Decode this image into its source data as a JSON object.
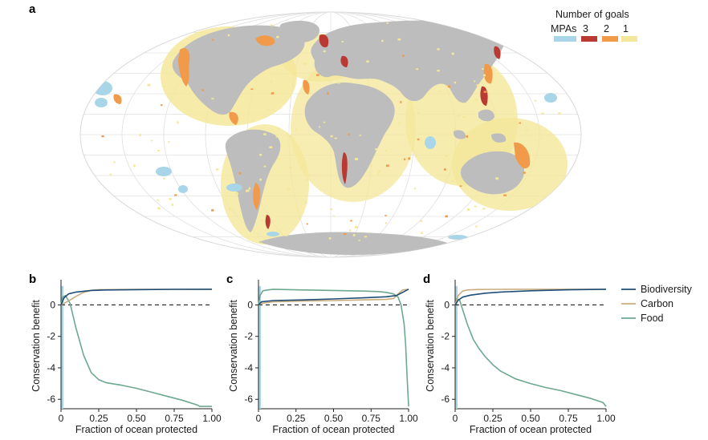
{
  "colors": {
    "biodiversity": "#1f4e79",
    "carbon": "#c9ad7d",
    "food": "#6da88f",
    "mpa": "#a8d5e8",
    "goal3": "#b93a32",
    "goal2": "#f09a4a",
    "goal1": "#f4e79a",
    "land": "#bdbdbd",
    "graticule": "#e2e2e2"
  },
  "map_panel": {
    "letter": "a",
    "legend": {
      "title": "Number of goals",
      "items": [
        {
          "label": "MPAs",
          "color": "#a8d5e8"
        },
        {
          "label": "3",
          "color": "#b93a32"
        },
        {
          "label": "2",
          "color": "#f09a4a"
        },
        {
          "label": "1",
          "color": "#f4e79a"
        }
      ]
    }
  },
  "curve_legend": [
    {
      "label": "Biodiversity",
      "color": "#1f4e79"
    },
    {
      "label": "Carbon",
      "color": "#c9ad7d"
    },
    {
      "label": "Food",
      "color": "#6da88f"
    }
  ],
  "chart_data": [
    {
      "panel": "b",
      "type": "line",
      "xlabel": "Fraction of ocean protected",
      "ylabel": "Conservation benefit",
      "xlim": [
        0,
        1
      ],
      "ylim": [
        -6.6,
        1.4
      ],
      "xticks": [
        "0",
        "0.25",
        "0.50",
        "0.75",
        "1.00"
      ],
      "yticks": [
        "-6",
        "-4",
        "-2",
        "0"
      ],
      "reference_line": {
        "y": 0,
        "style": "dashed"
      },
      "series": [
        {
          "name": "Biodiversity",
          "x": [
            0.0,
            0.02,
            0.05,
            0.1,
            0.2,
            0.3,
            0.5,
            0.75,
            1.0
          ],
          "y": [
            0.0,
            0.45,
            0.7,
            0.82,
            0.92,
            0.95,
            0.97,
            0.99,
            1.0
          ]
        },
        {
          "name": "Carbon",
          "x": [
            0.0,
            0.05,
            0.1,
            0.15,
            0.2,
            0.25,
            0.5,
            1.0
          ],
          "y": [
            0.0,
            0.25,
            0.55,
            0.8,
            0.93,
            0.97,
            0.99,
            1.0
          ]
        },
        {
          "name": "Food",
          "x": [
            0.0,
            0.01,
            0.03,
            0.06,
            0.1,
            0.15,
            0.2,
            0.25,
            0.3,
            0.4,
            0.5,
            0.6,
            0.7,
            0.8,
            0.9,
            0.92,
            1.0
          ],
          "y": [
            0.0,
            0.5,
            0.6,
            0.1,
            -1.5,
            -3.2,
            -4.3,
            -4.75,
            -4.95,
            -5.1,
            -5.3,
            -5.55,
            -5.8,
            -6.05,
            -6.35,
            -6.45,
            -6.45
          ]
        }
      ]
    },
    {
      "panel": "c",
      "type": "line",
      "xlabel": "Fraction of ocean protected",
      "ylabel": "Conservation benefit",
      "xlim": [
        0,
        1
      ],
      "ylim": [
        -6.6,
        1.4
      ],
      "xticks": [
        "0",
        "0.25",
        "0.50",
        "0.75",
        "1.00"
      ],
      "yticks": [
        "-6",
        "-4",
        "-2",
        "0"
      ],
      "reference_line": {
        "y": 0,
        "style": "dashed"
      },
      "series": [
        {
          "name": "Biodiversity",
          "x": [
            0.0,
            0.02,
            0.1,
            0.3,
            0.5,
            0.7,
            0.85,
            0.92,
            0.96,
            1.0
          ],
          "y": [
            0.0,
            0.2,
            0.28,
            0.32,
            0.38,
            0.45,
            0.52,
            0.6,
            0.8,
            1.0
          ]
        },
        {
          "name": "Carbon",
          "x": [
            0.0,
            0.02,
            0.1,
            0.3,
            0.5,
            0.7,
            0.85,
            0.9,
            0.93,
            0.96,
            1.0
          ],
          "y": [
            0.0,
            0.1,
            0.2,
            0.25,
            0.28,
            0.32,
            0.35,
            0.4,
            0.7,
            0.95,
            1.0
          ]
        },
        {
          "name": "Food",
          "x": [
            0.0,
            0.01,
            0.03,
            0.06,
            0.1,
            0.3,
            0.5,
            0.7,
            0.8,
            0.85,
            0.9,
            0.93,
            0.95,
            0.97,
            0.98,
            0.99,
            1.0
          ],
          "y": [
            0.0,
            0.6,
            0.9,
            0.95,
            1.0,
            0.95,
            0.92,
            0.88,
            0.85,
            0.8,
            0.7,
            0.5,
            0.0,
            -1.2,
            -2.5,
            -4.5,
            -6.45
          ]
        }
      ]
    },
    {
      "panel": "d",
      "type": "line",
      "xlabel": "Fraction of ocean protected",
      "ylabel": "Conservation benefit",
      "xlim": [
        0,
        1
      ],
      "ylim": [
        -6.6,
        1.4
      ],
      "xticks": [
        "0",
        "0.25",
        "0.50",
        "0.75",
        "1.00"
      ],
      "yticks": [
        "-6",
        "-4",
        "-2",
        "0"
      ],
      "reference_line": {
        "y": 0,
        "style": "dashed"
      },
      "series": [
        {
          "name": "Biodiversity",
          "x": [
            0.0,
            0.02,
            0.05,
            0.1,
            0.2,
            0.3,
            0.5,
            0.75,
            1.0
          ],
          "y": [
            0.0,
            0.3,
            0.5,
            0.62,
            0.75,
            0.82,
            0.9,
            0.96,
            1.0
          ]
        },
        {
          "name": "Carbon",
          "x": [
            0.0,
            0.02,
            0.05,
            0.08,
            0.15,
            0.3,
            0.5,
            1.0
          ],
          "y": [
            0.0,
            0.6,
            0.88,
            0.95,
            0.98,
            0.99,
            1.0,
            1.0
          ]
        },
        {
          "name": "Food",
          "x": [
            0.0,
            0.01,
            0.03,
            0.05,
            0.08,
            0.12,
            0.16,
            0.2,
            0.25,
            0.3,
            0.4,
            0.5,
            0.6,
            0.7,
            0.8,
            0.9,
            0.98,
            1.0
          ],
          "y": [
            0.0,
            0.4,
            0.3,
            -0.3,
            -1.2,
            -2.2,
            -2.8,
            -3.3,
            -3.8,
            -4.2,
            -4.7,
            -5.0,
            -5.25,
            -5.45,
            -5.7,
            -5.95,
            -6.2,
            -6.45
          ]
        }
      ]
    }
  ]
}
